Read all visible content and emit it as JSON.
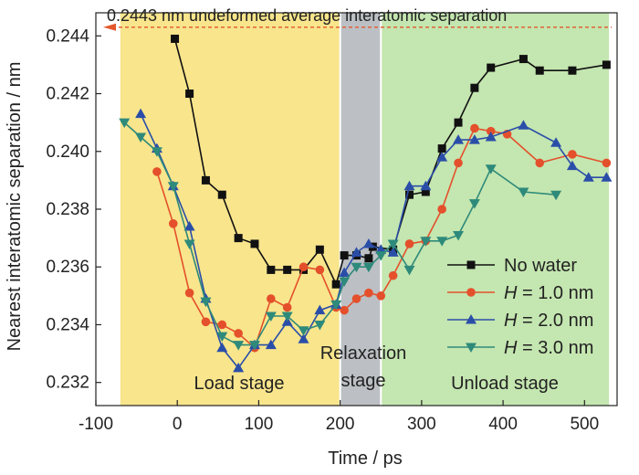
{
  "chart_data": {
    "type": "line",
    "xlabel": "Time / ps",
    "ylabel": "Nearest interatomic separation / nm",
    "xlim": [
      -100,
      540
    ],
    "ylim": [
      0.2312,
      0.2448
    ],
    "xticks": [
      -100,
      0,
      100,
      200,
      300,
      400,
      500
    ],
    "yticks": [
      0.232,
      0.234,
      0.236,
      0.238,
      0.24,
      0.242,
      0.244
    ],
    "ytick_labels": [
      "0.232",
      "0.234",
      "0.236",
      "0.238",
      "0.240",
      "0.242",
      "0.244"
    ],
    "grid": false,
    "legend_position": "bottom-right",
    "stages": [
      {
        "label": "Load stage",
        "lines": [
          "Load stage"
        ],
        "x0": -70,
        "x1": 200,
        "color": "#f8e58c"
      },
      {
        "label": "Relaxation stage",
        "lines": [
          "Relaxation",
          "stage"
        ],
        "x0": 200,
        "x1": 250,
        "color": "#bcc0c4"
      },
      {
        "label": "Unload stage",
        "lines": [
          "Unload stage"
        ],
        "x0": 250,
        "x1": 530,
        "color": "#c4e6b0"
      }
    ],
    "reference_line": {
      "y": 0.2443,
      "label": "0.2443 nm  undeformed average interatomic separation",
      "color": "#e4572e"
    },
    "series": [
      {
        "name": "No water",
        "marker": "square",
        "color": "#111111",
        "points": [
          [
            -3,
            0.2439
          ],
          [
            15,
            0.242
          ],
          [
            35,
            0.239
          ],
          [
            55,
            0.2385
          ],
          [
            75,
            0.237
          ],
          [
            95,
            0.2368
          ],
          [
            115,
            0.2359
          ],
          [
            135,
            0.2359
          ],
          [
            155,
            0.2359
          ],
          [
            175,
            0.2366
          ],
          [
            195,
            0.2354
          ],
          [
            205,
            0.2364
          ],
          [
            220,
            0.2364
          ],
          [
            235,
            0.2363
          ],
          [
            240,
            0.2367
          ],
          [
            265,
            0.2366
          ],
          [
            285,
            0.2385
          ],
          [
            305,
            0.2386
          ],
          [
            325,
            0.2401
          ],
          [
            345,
            0.241
          ],
          [
            365,
            0.2422
          ],
          [
            385,
            0.2429
          ],
          [
            425,
            0.2432
          ],
          [
            445,
            0.2428
          ],
          [
            485,
            0.2428
          ],
          [
            527,
            0.243
          ]
        ]
      },
      {
        "name": "H = 1.0 nm",
        "name_lines": [
          "H",
          " = 1.0 nm"
        ],
        "marker": "circle",
        "color": "#e4502b",
        "points": [
          [
            -25,
            0.2393
          ],
          [
            -5,
            0.2375
          ],
          [
            15,
            0.2351
          ],
          [
            35,
            0.2341
          ],
          [
            55,
            0.234
          ],
          [
            75,
            0.2337
          ],
          [
            95,
            0.2332
          ],
          [
            115,
            0.2349
          ],
          [
            135,
            0.2346
          ],
          [
            155,
            0.236
          ],
          [
            175,
            0.2359
          ],
          [
            195,
            0.2346
          ],
          [
            205,
            0.2345
          ],
          [
            220,
            0.2349
          ],
          [
            235,
            0.2351
          ],
          [
            250,
            0.235
          ],
          [
            265,
            0.2357
          ],
          [
            285,
            0.2368
          ],
          [
            305,
            0.2369
          ],
          [
            325,
            0.238
          ],
          [
            345,
            0.2396
          ],
          [
            365,
            0.2408
          ],
          [
            385,
            0.2407
          ],
          [
            405,
            0.2406
          ],
          [
            445,
            0.2396
          ],
          [
            485,
            0.2399
          ],
          [
            527,
            0.2396
          ]
        ]
      },
      {
        "name": "H = 2.0 nm",
        "name_lines": [
          "H",
          " = 2.0 nm"
        ],
        "marker": "triangle-up",
        "color": "#2a4ea8",
        "points": [
          [
            -45,
            0.2413
          ],
          [
            -25,
            0.2401
          ],
          [
            -5,
            0.2388
          ],
          [
            15,
            0.2374
          ],
          [
            35,
            0.2349
          ],
          [
            55,
            0.2332
          ],
          [
            75,
            0.2325
          ],
          [
            95,
            0.2333
          ],
          [
            115,
            0.2333
          ],
          [
            135,
            0.2341
          ],
          [
            155,
            0.2335
          ],
          [
            175,
            0.2345
          ],
          [
            195,
            0.2347
          ],
          [
            205,
            0.2358
          ],
          [
            220,
            0.2365
          ],
          [
            235,
            0.2368
          ],
          [
            250,
            0.2366
          ],
          [
            265,
            0.2365
          ],
          [
            285,
            0.2388
          ],
          [
            305,
            0.2388
          ],
          [
            325,
            0.2398
          ],
          [
            345,
            0.2404
          ],
          [
            365,
            0.2404
          ],
          [
            385,
            0.2405
          ],
          [
            425,
            0.2409
          ],
          [
            465,
            0.2403
          ],
          [
            485,
            0.2395
          ],
          [
            505,
            0.2391
          ],
          [
            527,
            0.2391
          ]
        ]
      },
      {
        "name": "H = 3.0 nm",
        "name_lines": [
          "H",
          " = 3.0 nm"
        ],
        "marker": "triangle-down",
        "color": "#2e8a7a",
        "points": [
          [
            -65,
            0.241
          ],
          [
            -45,
            0.2405
          ],
          [
            -25,
            0.24
          ],
          [
            -5,
            0.2388
          ],
          [
            15,
            0.2368
          ],
          [
            35,
            0.2348
          ],
          [
            55,
            0.2336
          ],
          [
            75,
            0.2333
          ],
          [
            95,
            0.2333
          ],
          [
            115,
            0.2343
          ],
          [
            135,
            0.2343
          ],
          [
            155,
            0.2338
          ],
          [
            175,
            0.234
          ],
          [
            195,
            0.2347
          ],
          [
            205,
            0.2355
          ],
          [
            220,
            0.236
          ],
          [
            235,
            0.236
          ],
          [
            250,
            0.2364
          ],
          [
            265,
            0.2368
          ],
          [
            285,
            0.2359
          ],
          [
            305,
            0.2369
          ],
          [
            325,
            0.2369
          ],
          [
            345,
            0.2371
          ],
          [
            365,
            0.2382
          ],
          [
            385,
            0.2394
          ],
          [
            425,
            0.2386
          ],
          [
            465,
            0.2385
          ]
        ]
      }
    ]
  }
}
